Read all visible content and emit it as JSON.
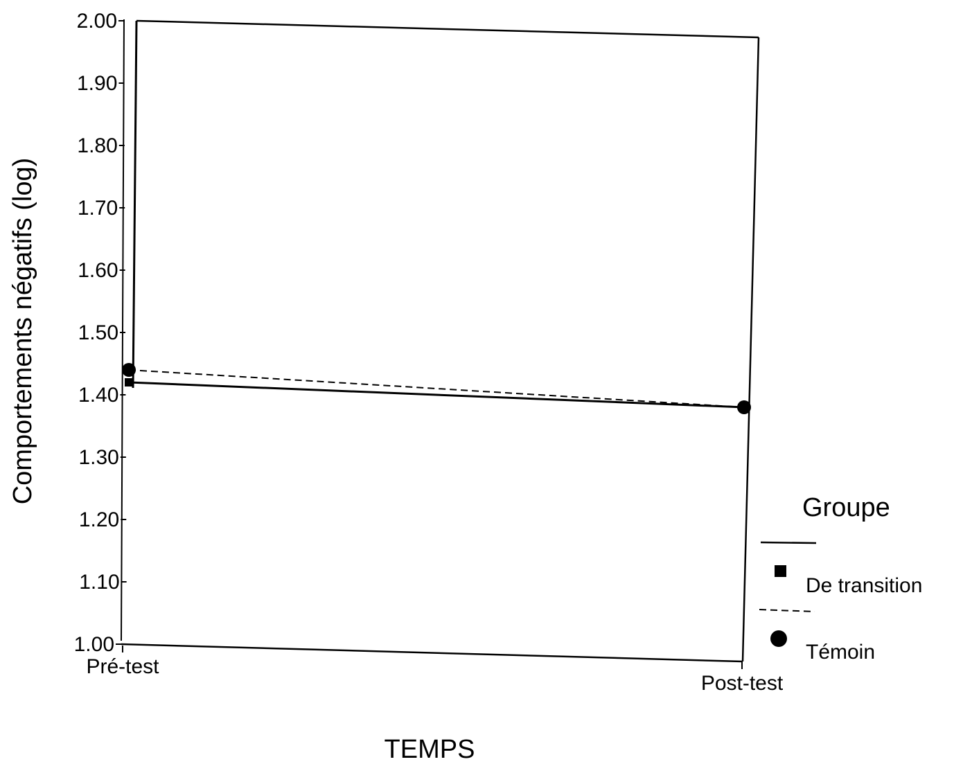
{
  "chart_data": {
    "type": "line",
    "ylabel": "Comportements négatifs (log)",
    "xlabel": "TEMPS",
    "categories": [
      "Pré-test",
      "Post-test"
    ],
    "ylim": [
      1.0,
      2.0
    ],
    "yticks": [
      "1.00",
      "1.10",
      "1.20",
      "1.30",
      "1.40",
      "1.50",
      "1.60",
      "1.70",
      "1.80",
      "1.90",
      "2.00"
    ],
    "grid": false,
    "series": [
      {
        "name": "De transition",
        "values": [
          1.42,
          1.38
        ],
        "line_style": "solid",
        "marker": "square"
      },
      {
        "name": "Témoin",
        "values": [
          1.44,
          1.38
        ],
        "line_style": "dashed",
        "marker": "circle"
      }
    ],
    "legend": {
      "title": "Groupe",
      "position": "right"
    },
    "colors": {
      "ink": "#000000",
      "background": "#ffffff"
    }
  }
}
